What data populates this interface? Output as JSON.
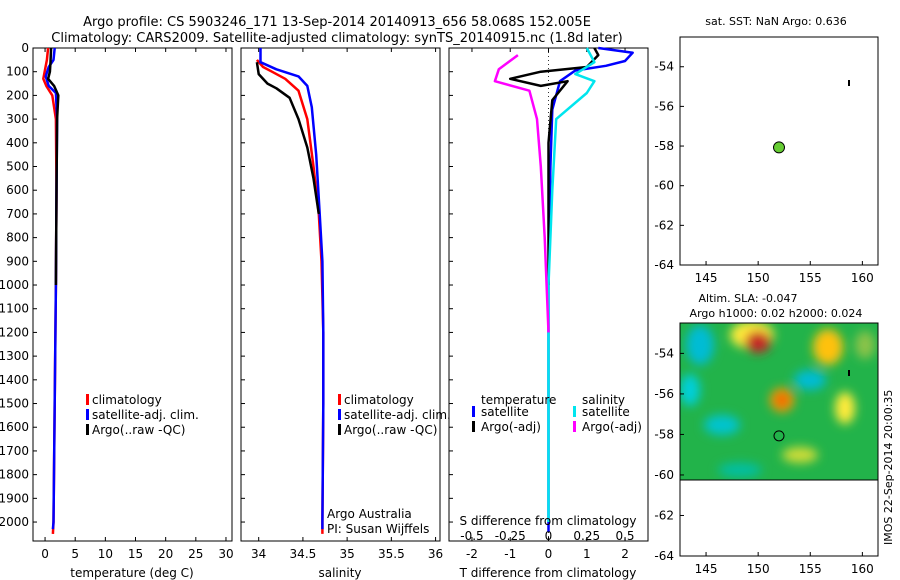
{
  "header": {
    "line1": "Argo profile: CS 5903246_171 13-Sep-2014 20140913_656 58.068S 152.005E",
    "line2": "Climatology: CARS2009. Satellite-adjusted climatology: synTS_20140915.nc (1.8d later)"
  },
  "watermark": "IMOS 22-Sep-2014 20:00:35",
  "annotation": {
    "line1": "Argo Australia",
    "line2": "PI: Susan Wijffels"
  },
  "colors": {
    "climatology": "#ff0000",
    "satellite": "#0000ff",
    "argo": "#000000",
    "satellite_diff_s": "#00e5ee",
    "argo_diff_s": "#ff00ff",
    "float_marker": "#66cc33"
  },
  "chart_data": [
    {
      "id": "temperature",
      "type": "line",
      "xlabel": "temperature (deg C)",
      "xlim": [
        -2,
        31
      ],
      "xticks": [
        0,
        5,
        10,
        15,
        20,
        25,
        30
      ],
      "ylim": [
        0,
        2080
      ],
      "yticks": [
        0,
        100,
        200,
        300,
        400,
        500,
        600,
        700,
        800,
        900,
        1000,
        1100,
        1200,
        1300,
        1400,
        1500,
        1600,
        1700,
        1800,
        1900,
        2000
      ],
      "legend": [
        "climatology",
        "satellite-adj. clim.",
        "Argo(..raw -QC)"
      ],
      "legend_position": "lower-middle",
      "series": [
        {
          "key": "climatology",
          "points": [
            [
              0.5,
              0
            ],
            [
              0.3,
              50
            ],
            [
              0,
              90
            ],
            [
              -0.3,
              130
            ],
            [
              0.2,
              160
            ],
            [
              1.2,
              200
            ],
            [
              1.8,
              300
            ],
            [
              1.9,
              600
            ],
            [
              1.8,
              1000
            ],
            [
              1.6,
              1500
            ],
            [
              1.4,
              2000
            ],
            [
              1.3,
              2050
            ]
          ]
        },
        {
          "key": "satellite",
          "points": [
            [
              1.6,
              0
            ],
            [
              1.4,
              50
            ],
            [
              0.6,
              80
            ],
            [
              0.1,
              120
            ],
            [
              0.6,
              160
            ],
            [
              1.8,
              190
            ],
            [
              2.0,
              300
            ],
            [
              1.9,
              600
            ],
            [
              1.8,
              1000
            ],
            [
              1.6,
              1500
            ],
            [
              1.4,
              2000
            ],
            [
              1.3,
              2030
            ]
          ]
        },
        {
          "key": "argo",
          "points": [
            [
              1.0,
              0
            ],
            [
              0.9,
              60
            ],
            [
              0.8,
              100
            ],
            [
              0.5,
              130
            ],
            [
              1.5,
              160
            ],
            [
              2.2,
              200
            ],
            [
              2.0,
              300
            ],
            [
              1.9,
              600
            ],
            [
              1.8,
              1000
            ]
          ]
        }
      ]
    },
    {
      "id": "salinity",
      "type": "line",
      "xlabel": "salinity",
      "xlim": [
        33.8,
        36.05
      ],
      "xticks": [
        34,
        34.5,
        35,
        35.5,
        36
      ],
      "xticklabels": [
        "34",
        "34.5",
        "35",
        "35.5",
        "36"
      ],
      "ylim": [
        0,
        2080
      ],
      "legend": [
        "climatology",
        "satellite-adj. clim.",
        "Argo(..raw -QC)"
      ],
      "legend_position": "lower-middle",
      "series": [
        {
          "key": "climatology",
          "points": [
            [
              33.98,
              50
            ],
            [
              34.05,
              80
            ],
            [
              34.15,
              100
            ],
            [
              34.3,
              130
            ],
            [
              34.45,
              180
            ],
            [
              34.55,
              300
            ],
            [
              34.62,
              500
            ],
            [
              34.68,
              700
            ],
            [
              34.71,
              900
            ],
            [
              34.73,
              1200
            ],
            [
              34.73,
              1500
            ],
            [
              34.72,
              2000
            ],
            [
              34.72,
              2050
            ]
          ]
        },
        {
          "key": "satellite",
          "points": [
            [
              34.02,
              0
            ],
            [
              34.02,
              60
            ],
            [
              34.2,
              90
            ],
            [
              34.45,
              120
            ],
            [
              34.55,
              160
            ],
            [
              34.6,
              250
            ],
            [
              34.65,
              450
            ],
            [
              34.69,
              700
            ],
            [
              34.72,
              900
            ],
            [
              34.73,
              1200
            ],
            [
              34.73,
              1500
            ],
            [
              34.72,
              2000
            ],
            [
              34.72,
              2030
            ]
          ]
        },
        {
          "key": "argo",
          "points": [
            [
              33.98,
              60
            ],
            [
              34.0,
              110
            ],
            [
              34.1,
              150
            ],
            [
              34.2,
              170
            ],
            [
              34.35,
              210
            ],
            [
              34.45,
              300
            ],
            [
              34.55,
              420
            ],
            [
              34.62,
              550
            ],
            [
              34.68,
              700
            ]
          ]
        }
      ]
    },
    {
      "id": "difference",
      "type": "line",
      "xlabel": "T difference from climatology",
      "title_top": "S difference from climatology",
      "xlim": [
        -2.6,
        2.6
      ],
      "xticks": [
        -2,
        -1,
        0,
        1,
        2
      ],
      "secondary_xticklabels": [
        "-0.5",
        "-0.25",
        "0",
        "0.25",
        "0.5"
      ],
      "ylim": [
        0,
        2080
      ],
      "legend_groups": [
        {
          "title": "temperature",
          "entries": [
            "satellite",
            "Argo(-adj)"
          ]
        },
        {
          "title": "salinity",
          "entries": [
            "satellite",
            "Argo(-adj)"
          ]
        }
      ],
      "legend_position": "lower-middle",
      "series": [
        {
          "key": "satellite",
          "points": [
            [
              1.3,
              0
            ],
            [
              2.2,
              20
            ],
            [
              2.0,
              55
            ],
            [
              1.5,
              75
            ],
            [
              0.7,
              95
            ],
            [
              0.3,
              140
            ],
            [
              0.1,
              260
            ],
            [
              0.05,
              500
            ],
            [
              0,
              1000
            ],
            [
              0,
              2000
            ],
            [
              0,
              2040
            ]
          ]
        },
        {
          "key": "argo",
          "points": [
            [
              1.2,
              0
            ],
            [
              1.3,
              30
            ],
            [
              1.0,
              80
            ],
            [
              -0.2,
              100
            ],
            [
              -1.0,
              130
            ],
            [
              -0.2,
              160
            ],
            [
              0.5,
              140
            ],
            [
              0.1,
              220
            ],
            [
              0,
              400
            ],
            [
              0,
              1000
            ]
          ]
        },
        {
          "key": "satellite_diff_s",
          "points": [
            [
              1.0,
              0
            ],
            [
              1.2,
              60
            ],
            [
              0.7,
              110
            ],
            [
              1.2,
              140
            ],
            [
              1.0,
              190
            ],
            [
              0.2,
              300
            ],
            [
              0.1,
              600
            ],
            [
              0,
              1000
            ],
            [
              0,
              2000
            ]
          ]
        },
        {
          "key": "argo_diff_s",
          "points": [
            [
              -0.8,
              30
            ],
            [
              -1.3,
              90
            ],
            [
              -1.4,
              140
            ],
            [
              -0.5,
              180
            ],
            [
              -0.3,
              300
            ],
            [
              -0.2,
              500
            ],
            [
              -0.1,
              800
            ],
            [
              0,
              1200
            ]
          ]
        }
      ]
    },
    {
      "id": "sst_map",
      "type": "scatter",
      "title": "sat. SST: NaN Argo: 0.636",
      "xlim": [
        142.5,
        161.5
      ],
      "ylim": [
        -64,
        -52.5
      ],
      "xticks": [
        145,
        150,
        155,
        160
      ],
      "yticks": [
        -54,
        -56,
        -58,
        -60,
        -62,
        -64
      ],
      "float_position": [
        152,
        -58.07
      ]
    },
    {
      "id": "sla_map",
      "type": "heatmap",
      "title": "Altim. SLA: -0.047",
      "subtitle": "Argo h1000: 0.02 h2000: 0.024",
      "xlim": [
        142.5,
        161.5
      ],
      "ylim": [
        -64,
        -52.5
      ],
      "xticks": [
        145,
        150,
        155,
        160
      ],
      "yticks": [
        -54,
        -56,
        -58,
        -60,
        -62,
        -64
      ],
      "float_position": [
        152,
        -58.07
      ]
    }
  ]
}
